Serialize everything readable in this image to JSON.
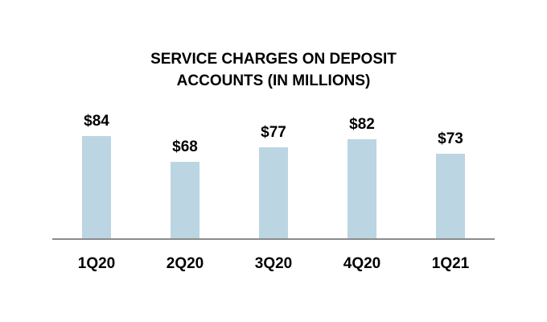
{
  "chart_data": {
    "type": "bar",
    "title": "SERVICE CHARGES ON DEPOSIT ACCOUNTS (IN MILLIONS)",
    "categories": [
      "1Q20",
      "2Q20",
      "3Q20",
      "4Q20",
      "1Q21"
    ],
    "values": [
      84,
      68,
      77,
      82,
      73
    ],
    "value_labels": [
      "$84",
      "$68",
      "$77",
      "$82",
      "$73"
    ],
    "color": "#bcd5e2",
    "ylim": [
      20,
      90
    ]
  }
}
